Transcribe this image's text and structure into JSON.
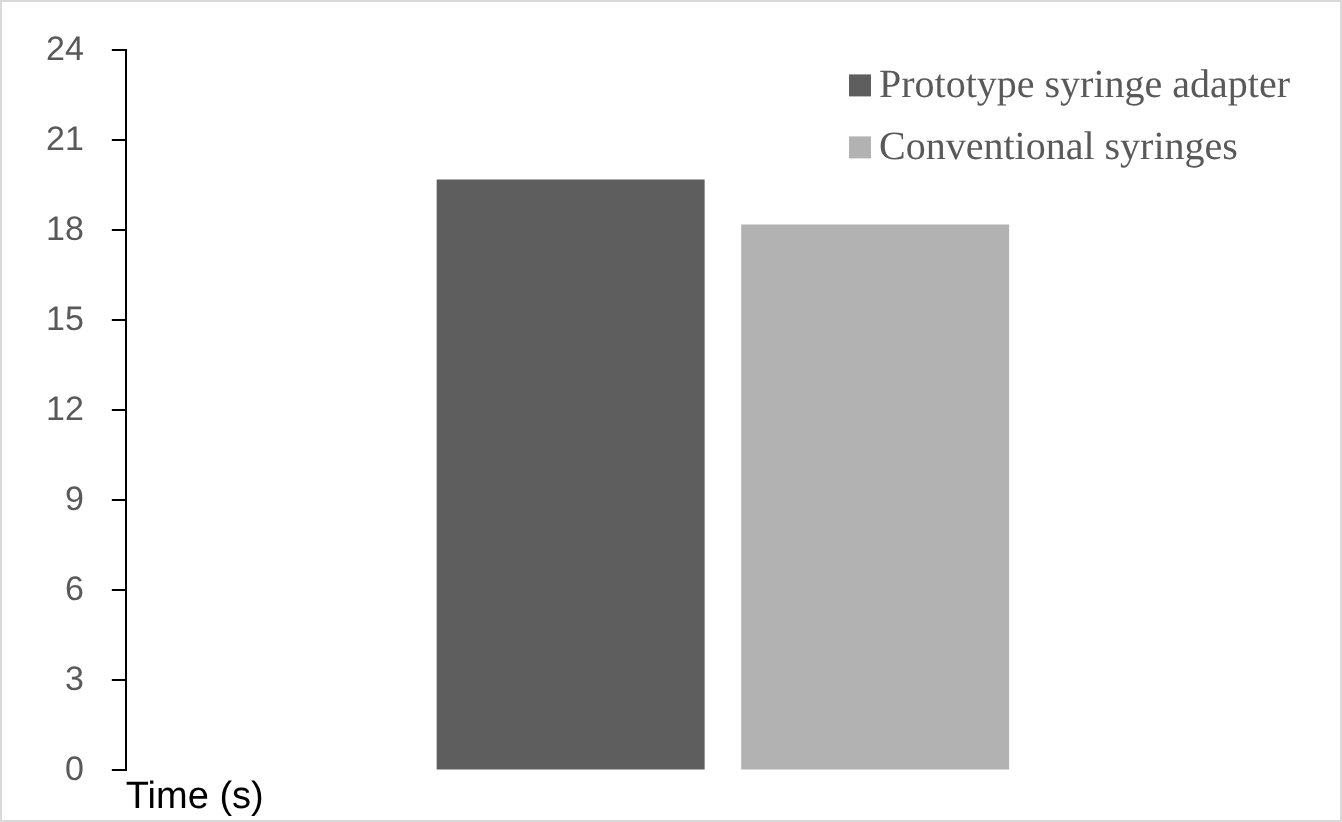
{
  "chart_data": {
    "type": "bar",
    "xlabel": "Time (s)",
    "categories": [
      null
    ],
    "series": [
      {
        "name": "Prototype syringe adapter",
        "color": "#5e5e5e",
        "values": [
          19.7
        ]
      },
      {
        "name": "Conventional syringes",
        "color": "#b2b2b2",
        "values": [
          18.2
        ]
      }
    ],
    "ylim": [
      0,
      24
    ],
    "yticks": [
      0,
      3,
      6,
      9,
      12,
      15,
      18,
      21,
      24
    ],
    "grid": false,
    "legend": "top right"
  }
}
